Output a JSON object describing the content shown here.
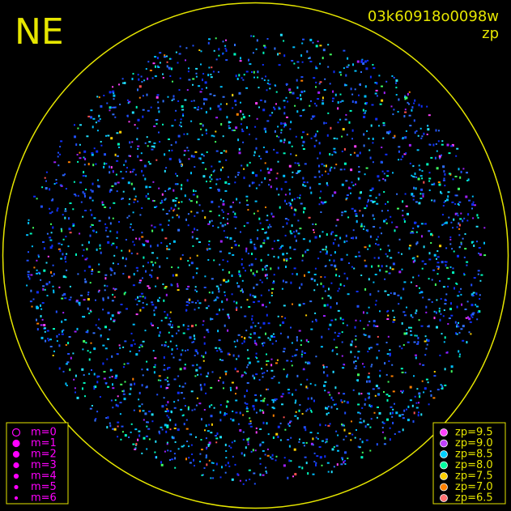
{
  "header": {
    "corner": "NE",
    "image_id": "03k60918o0098w",
    "mode": "zp"
  },
  "magnitude_legend": {
    "color": "#ff00ff",
    "entries": [
      {
        "label": "m=0",
        "size": 4.5
      },
      {
        "label": "m=1",
        "size": 4
      },
      {
        "label": "m=2",
        "size": 3.5
      },
      {
        "label": "m=3",
        "size": 3
      },
      {
        "label": "m=4",
        "size": 2.5
      },
      {
        "label": "m=5",
        "size": 2
      },
      {
        "label": "m=6",
        "size": 1.5
      }
    ]
  },
  "zp_legend": {
    "entries": [
      {
        "label": "zp=9.5",
        "color": "#ff40ff"
      },
      {
        "label": "zp=9.0",
        "color": "#c040ff"
      },
      {
        "label": "zp=8.5",
        "color": "#00d0ff"
      },
      {
        "label": "zp=8.0",
        "color": "#00ffa0"
      },
      {
        "label": "zp=7.5",
        "color": "#ffd000"
      },
      {
        "label": "zp=7.0",
        "color": "#ff8000"
      },
      {
        "label": "zp=6.5",
        "color": "#ff7070"
      }
    ]
  }
}
